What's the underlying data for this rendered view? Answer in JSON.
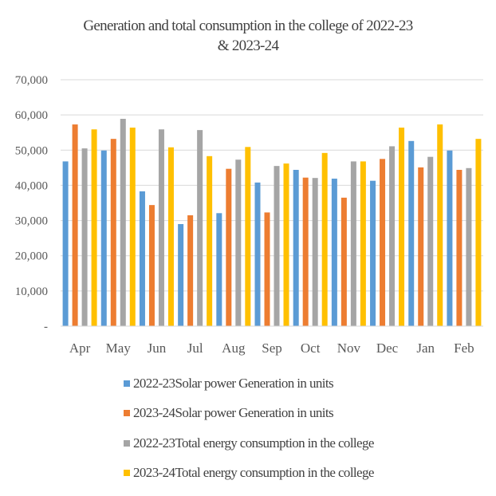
{
  "chart_data": {
    "type": "bar",
    "title_lines": [
      "Generation and  total consumption in the college  of 2022-23",
      "& 2023-24"
    ],
    "xlabel": "",
    "ylabel": "",
    "ylim": [
      0,
      70000
    ],
    "yticks": [
      0,
      10000,
      20000,
      30000,
      40000,
      50000,
      60000,
      70000
    ],
    "ytick_labels": [
      "-",
      "10,000",
      "20,000",
      "30,000",
      "40,000",
      "50,000",
      "60,000",
      "70,000"
    ],
    "grid": true,
    "legend_position": "bottom",
    "categories": [
      "Apr",
      "May",
      "Jun",
      "Jul",
      "Aug",
      "Sep",
      "Oct",
      "Nov",
      "Dec",
      "Jan",
      "Feb"
    ],
    "series": [
      {
        "name": "2022-23Solar power Generation in units",
        "color": "#5b9bd5",
        "values": [
          46800,
          49900,
          38300,
          29000,
          32100,
          40800,
          44400,
          41900,
          41300,
          52600,
          49900
        ]
      },
      {
        "name": "2023-24Solar power Generation in units",
        "color": "#ed7d31",
        "values": [
          57300,
          53200,
          34400,
          31500,
          44700,
          32300,
          42200,
          36500,
          47500,
          45100,
          44400
        ]
      },
      {
        "name": "2022-23Total energy consumption in the college",
        "color": "#a5a5a5",
        "values": [
          50500,
          58900,
          55900,
          55700,
          47300,
          45500,
          42100,
          46800,
          51100,
          48100,
          44900
        ]
      },
      {
        "name": "2023-24Total energy consumption in the college",
        "color": "#ffc000",
        "values": [
          55900,
          56400,
          50800,
          48300,
          50900,
          46200,
          49200,
          46800,
          56400,
          57300,
          53200
        ]
      }
    ]
  }
}
